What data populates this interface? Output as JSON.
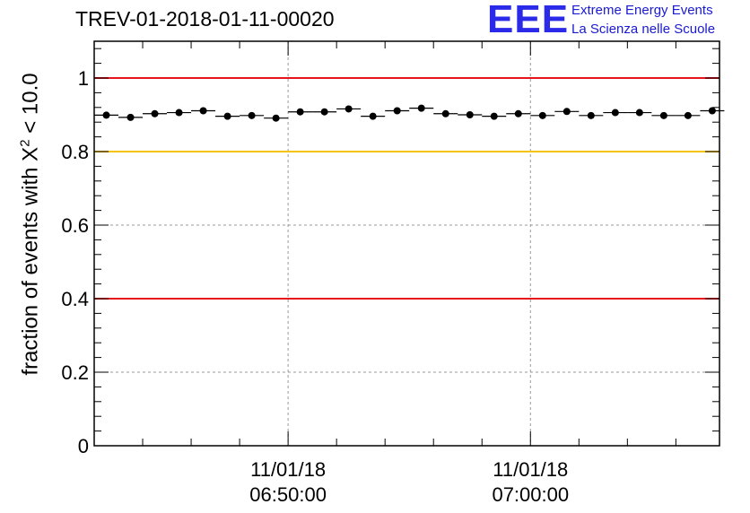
{
  "header": {
    "run_title": "TREV-01-2018-01-11-00020",
    "logo_text": "EEE",
    "logo_line1": "Extreme Energy Events",
    "logo_line2": "La Scienza nelle Scuole"
  },
  "colors": {
    "logo": "#2a2ae8",
    "red_line": "#e8141c",
    "yellow_line": "#f5c400",
    "points": "#000000",
    "grid": "#9a9a9a"
  },
  "chart_data": {
    "type": "scatter",
    "title": "TREV-01-2018-01-11-00020",
    "xlabel": "",
    "ylabel_prefix": "fraction of events with X",
    "ylabel_sup": "2",
    "ylabel_suffix": " < 10.0",
    "ylim": [
      0,
      1.1
    ],
    "yticks": [
      "0",
      "0.2",
      "0.4",
      "0.6",
      "0.8",
      "1"
    ],
    "ytick_values": [
      0,
      0.2,
      0.4,
      0.6,
      0.8,
      1.0
    ],
    "xlim_minutes": [
      0,
      25.8
    ],
    "xtick_labels": [
      {
        "date": "11/01/18",
        "time": "06:50:00",
        "minutes": 8
      },
      {
        "date": "11/01/18",
        "time": "07:00:00",
        "minutes": 18
      }
    ],
    "reference_lines": [
      {
        "y": 1.0,
        "color": "red"
      },
      {
        "y": 0.8,
        "color": "yellow"
      },
      {
        "y": 0.4,
        "color": "red"
      }
    ],
    "points": [
      {
        "x": 0.5,
        "y": 0.899
      },
      {
        "x": 1.5,
        "y": 0.893
      },
      {
        "x": 2.5,
        "y": 0.903
      },
      {
        "x": 3.5,
        "y": 0.906
      },
      {
        "x": 4.5,
        "y": 0.911
      },
      {
        "x": 5.5,
        "y": 0.896
      },
      {
        "x": 6.5,
        "y": 0.898
      },
      {
        "x": 7.5,
        "y": 0.891
      },
      {
        "x": 8.5,
        "y": 0.908
      },
      {
        "x": 9.5,
        "y": 0.908
      },
      {
        "x": 10.5,
        "y": 0.916
      },
      {
        "x": 11.5,
        "y": 0.896
      },
      {
        "x": 12.5,
        "y": 0.911
      },
      {
        "x": 13.5,
        "y": 0.918
      },
      {
        "x": 14.5,
        "y": 0.903
      },
      {
        "x": 15.5,
        "y": 0.9
      },
      {
        "x": 16.5,
        "y": 0.896
      },
      {
        "x": 17.5,
        "y": 0.903
      },
      {
        "x": 18.5,
        "y": 0.898
      },
      {
        "x": 19.5,
        "y": 0.909
      },
      {
        "x": 20.5,
        "y": 0.898
      },
      {
        "x": 21.5,
        "y": 0.906
      },
      {
        "x": 22.5,
        "y": 0.906
      },
      {
        "x": 23.5,
        "y": 0.898
      },
      {
        "x": 24.5,
        "y": 0.898
      },
      {
        "x": 25.5,
        "y": 0.911
      }
    ]
  }
}
